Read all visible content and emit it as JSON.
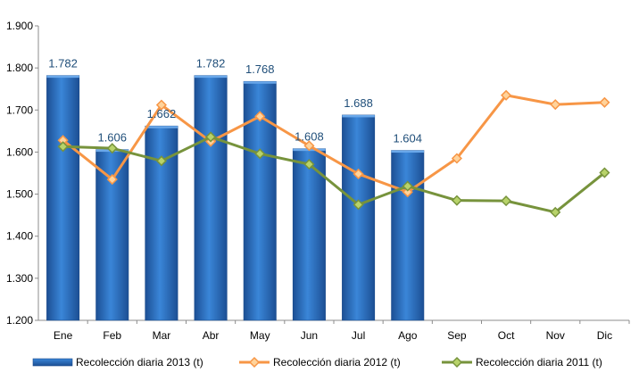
{
  "chart_data": {
    "type": "bar",
    "categories": [
      "Ene",
      "Feb",
      "Mar",
      "Abr",
      "May",
      "Jun",
      "Jul",
      "Ago",
      "Sep",
      "Oct",
      "Nov",
      "Dic"
    ],
    "ylim": [
      1200,
      1900
    ],
    "yticks": [
      1200,
      1300,
      1400,
      1500,
      1600,
      1700,
      1800,
      1900
    ],
    "ytick_labels": [
      "1.200",
      "1.300",
      "1.400",
      "1.500",
      "1.600",
      "1.700",
      "1.800",
      "1.900"
    ],
    "grid": false,
    "legend_position": "bottom",
    "series": [
      {
        "name": "Recolección diaria  2013 (t)",
        "type": "bar",
        "color": "#2e75c8",
        "values": [
          1782,
          1606,
          1662,
          1782,
          1768,
          1608,
          1688,
          1604,
          null,
          null,
          null,
          null
        ],
        "data_labels": [
          "1.782",
          "1.606",
          "1.662",
          "1.782",
          "1.768",
          "1.608",
          "1.688",
          "1.604",
          "",
          "",
          "",
          ""
        ]
      },
      {
        "name": "Recolección diaria  2012 (t)",
        "type": "line",
        "color": "#f79646",
        "marker": "diamond",
        "values": [
          1628,
          1535,
          1712,
          1625,
          1685,
          1615,
          1548,
          1505,
          1585,
          1735,
          1713,
          1718
        ]
      },
      {
        "name": "Recolección diaria  2011 (t)",
        "type": "line",
        "color": "#77933c",
        "marker": "diamond",
        "values": [
          1613,
          1609,
          1579,
          1636,
          1596,
          1571,
          1475,
          1519,
          1485,
          1484,
          1457,
          1551
        ]
      }
    ]
  }
}
